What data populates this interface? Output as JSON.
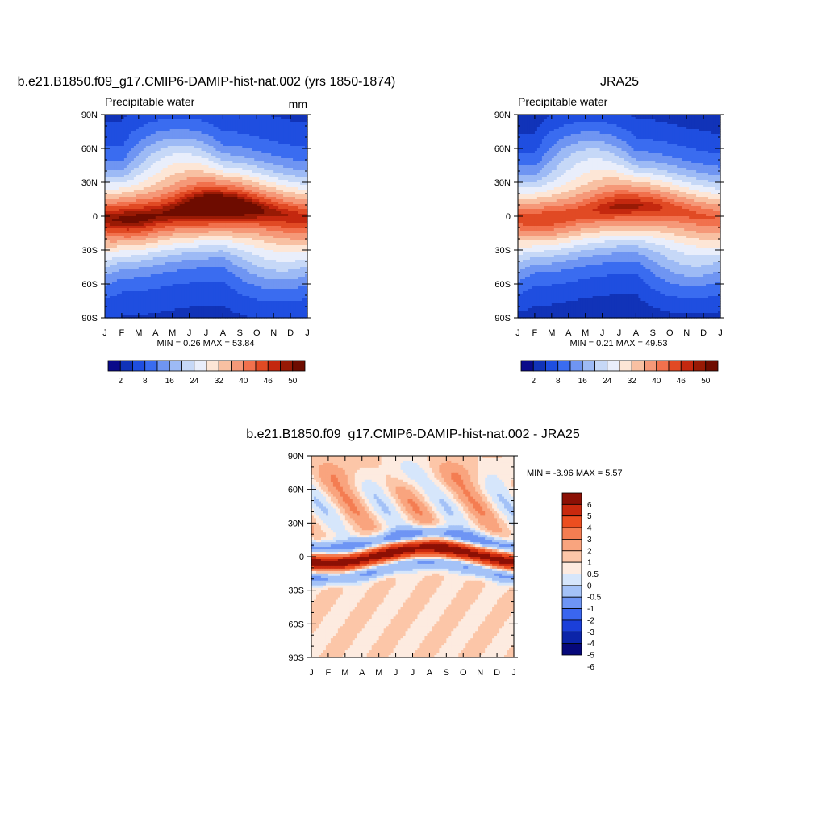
{
  "palette_abs": [
    "#0a0a8a",
    "#1133b8",
    "#1f4ee0",
    "#3a6cf0",
    "#6f95f2",
    "#9dbaf5",
    "#c6d8f7",
    "#e9eefb",
    "#fde6d6",
    "#f8c0a2",
    "#f59878",
    "#f1714d",
    "#e14a24",
    "#c4280f",
    "#981a05",
    "#6e0c00"
  ],
  "palette_diff": [
    "#06087a",
    "#0b24a8",
    "#1b3fd9",
    "#3a66ef",
    "#6e95f4",
    "#a4c2f7",
    "#d6e6fb",
    "#fdebe0",
    "#fcc6a8",
    "#f9a47e",
    "#f47d52",
    "#ec4e20",
    "#c9290e",
    "#8c1005"
  ],
  "x_ticks": [
    "J",
    "F",
    "M",
    "A",
    "M",
    "J",
    "J",
    "A",
    "S",
    "O",
    "N",
    "D",
    "J"
  ],
  "y_ticks": [
    "90N",
    "60N",
    "30N",
    "0",
    "30S",
    "60S",
    "90S"
  ],
  "panel_model": {
    "title": "b.e21.B1850.f09_g17.CMIP6-DAMIP-hist-nat.002 (yrs 1850-1874)",
    "left_label": "Precipitable water",
    "right_label": "mm",
    "minmax": "MIN =   0.26 MAX =  53.84"
  },
  "panel_obs": {
    "title": "JRA25",
    "left_label": "Precipitable water",
    "minmax": "MIN =   0.21 MAX =  49.53"
  },
  "panel_diff": {
    "title": "b.e21.B1850.f09_g17.CMIP6-DAMIP-hist-nat.002 - JRA25",
    "minmax": "MIN =  -3.96 MAX =   5.57"
  },
  "colorbar_abs_labels": [
    "2",
    "8",
    "16",
    "24",
    "32",
    "40",
    "46",
    "50"
  ],
  "colorbar_diff_labels": [
    "6",
    "5",
    "4",
    "3",
    "2",
    "1",
    "0.5",
    "0",
    "-0.5",
    "-1",
    "-2",
    "-3",
    "-4",
    "-5",
    "-6"
  ],
  "chart_data": [
    {
      "type": "heatmap",
      "title": "b.e21.B1850.f09_g17.CMIP6-DAMIP-hist-nat.002 (yrs 1850-1874)",
      "variable": "Precipitable water",
      "units": "mm",
      "x": [
        "J",
        "F",
        "M",
        "A",
        "M",
        "J",
        "J",
        "A",
        "S",
        "O",
        "N",
        "D",
        "J"
      ],
      "y": [
        "90N",
        "60N",
        "30N",
        "0",
        "30S",
        "60S",
        "90S"
      ],
      "min": 0.26,
      "max": 53.84,
      "contour_levels": [
        2,
        5,
        8,
        12,
        16,
        20,
        24,
        28,
        32,
        36,
        40,
        43,
        46,
        48,
        50
      ]
    },
    {
      "type": "heatmap",
      "title": "JRA25",
      "variable": "Precipitable water",
      "x": [
        "J",
        "F",
        "M",
        "A",
        "M",
        "J",
        "J",
        "A",
        "S",
        "O",
        "N",
        "D",
        "J"
      ],
      "y": [
        "90N",
        "60N",
        "30N",
        "0",
        "30S",
        "60S",
        "90S"
      ],
      "min": 0.21,
      "max": 49.53,
      "contour_levels": [
        2,
        5,
        8,
        12,
        16,
        20,
        24,
        28,
        32,
        36,
        40,
        43,
        46,
        48,
        50
      ]
    },
    {
      "type": "heatmap",
      "title": "b.e21.B1850.f09_g17.CMIP6-DAMIP-hist-nat.002 - JRA25",
      "x": [
        "J",
        "F",
        "M",
        "A",
        "M",
        "J",
        "J",
        "A",
        "S",
        "O",
        "N",
        "D",
        "J"
      ],
      "y": [
        "90N",
        "60N",
        "30N",
        "0",
        "30S",
        "60S",
        "90S"
      ],
      "min": -3.96,
      "max": 5.57,
      "contour_levels": [
        -6,
        -5,
        -4,
        -3,
        -2,
        -1,
        -0.5,
        0,
        0.5,
        1,
        2,
        3,
        4,
        5,
        6
      ]
    }
  ]
}
